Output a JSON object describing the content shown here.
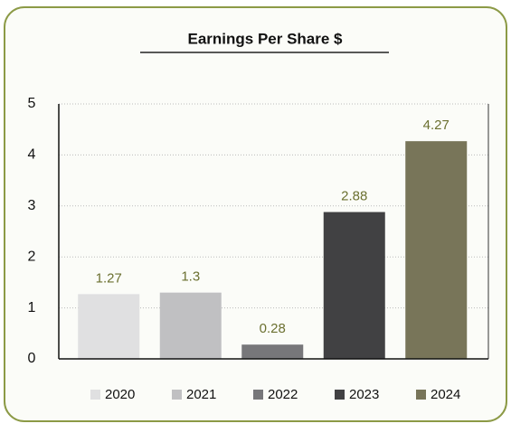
{
  "chart_data": {
    "type": "bar",
    "title": "Earnings Per Share $",
    "categories": [
      "2020",
      "2021",
      "2022",
      "2023",
      "2024"
    ],
    "values": [
      1.27,
      1.3,
      0.28,
      2.88,
      4.27
    ],
    "colors": [
      "#e0e0e1",
      "#c0c0c2",
      "#77777a",
      "#414143",
      "#787559"
    ],
    "ylim": [
      0,
      5
    ],
    "yticks": [
      0,
      1,
      2,
      3,
      4,
      5
    ],
    "grid": true,
    "legend": "bottom"
  }
}
